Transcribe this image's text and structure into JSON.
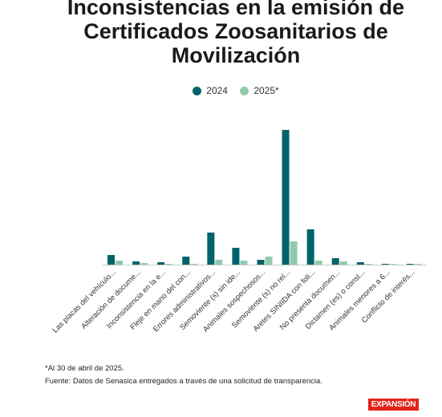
{
  "title_lines": [
    "Inconsistencias en la emisión de",
    "Certificados Zoosanitarios de",
    "Movilización"
  ],
  "footnote": "*Al 30 de abril de 2025.",
  "source": "Fuente: Datos de Senasica entregados a través de una solicitud de transparencia.",
  "brand": "EXPANSIÓN",
  "colors": {
    "s2024": "#00636b",
    "s2025": "#8fcbaa",
    "axis": "#cccccc"
  },
  "chart_data": {
    "type": "bar",
    "title": "Inconsistencias en la emisión de Certificados Zoosanitarios de Movilización",
    "categories": [
      "Las placas del vehículo...",
      "Alteración de docume...",
      "Inconsistencia en la e...",
      "Fleje en mano del con...",
      "Errores administrativos...",
      "Semoviente (s) sin ide...",
      "Animales sospechosos...",
      "Semoviente (s) no rel...",
      "Aretes SINIIDA con foli...",
      "No presenta documen...",
      "Dictamen (es) o const...",
      "Animales menores a 6...",
      "Conflicto de interés..."
    ],
    "series": [
      {
        "name": "2024",
        "values": [
          12,
          4,
          3,
          10,
          40,
          21,
          6,
          168,
          44,
          8,
          3,
          1,
          1
        ]
      },
      {
        "name": "2025*",
        "values": [
          5,
          2,
          1,
          1,
          6,
          5,
          10,
          29,
          5,
          4,
          1,
          0.5,
          0.5
        ]
      }
    ],
    "ylim": [
      0,
      170
    ],
    "grid": false,
    "legend": "top-center",
    "xlabel": "",
    "ylabel": ""
  }
}
